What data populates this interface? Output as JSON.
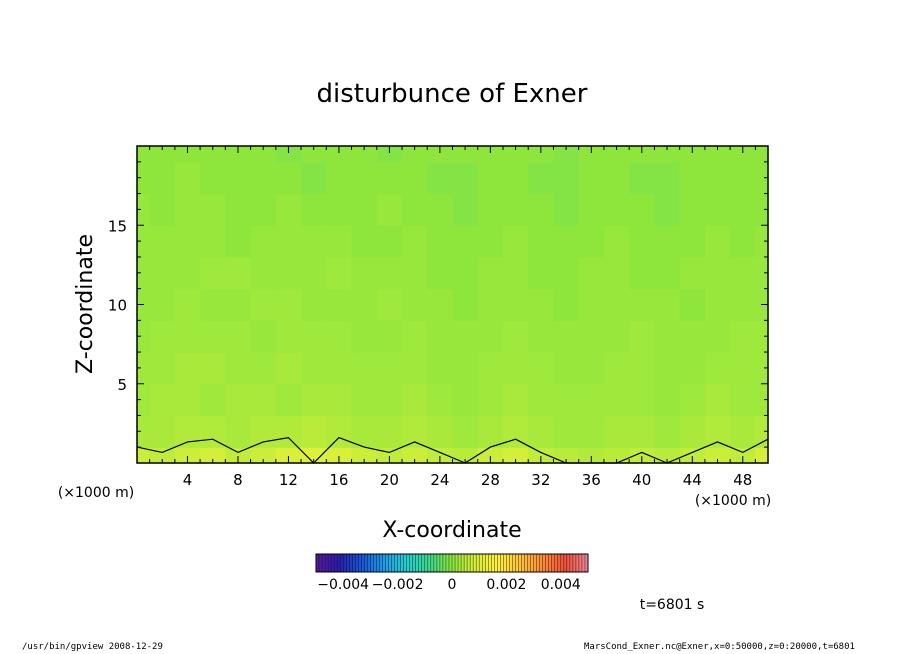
{
  "chart_data": {
    "type": "heatmap",
    "title": "disturbunce of Exner",
    "xlabel": "X-coordinate",
    "ylabel": "Z-coordinate",
    "x_unit": "(×1000 m)",
    "y_unit": "(×1000 m)",
    "xlim": [
      0,
      50
    ],
    "ylim": [
      0,
      20
    ],
    "x_ticks": [
      4,
      8,
      12,
      16,
      20,
      24,
      28,
      32,
      36,
      40,
      44,
      48
    ],
    "y_ticks": [
      5,
      10,
      15
    ],
    "colorbar": {
      "min": -0.005,
      "max": 0.005,
      "tick_values": [
        -0.004,
        -0.002,
        0,
        0.002,
        0.004
      ],
      "tick_labels": [
        "−0.004",
        "−0.002",
        "0",
        "0.002",
        "0.004"
      ],
      "colors": [
        "#5a1a9a",
        "#2a1fb0",
        "#1a55d8",
        "#1e9be8",
        "#22cfcf",
        "#3fd98a",
        "#8ee63c",
        "#d6ef3a",
        "#fff23a",
        "#ffc43a",
        "#ff8a3a",
        "#f0503a",
        "#f08a9a"
      ]
    },
    "field": {
      "description_values": "approximate Exner disturbance sampled on a 26 x 11 grid (x every 2 km from 0 to 50, z every 2 km from 0 to 20)",
      "rows_z": [
        0,
        2,
        4,
        6,
        8,
        10,
        12,
        14,
        16,
        18,
        20
      ],
      "values": [
        [
          0.0007,
          0.0006,
          0.0007,
          0.0008,
          0.0006,
          0.0007,
          0.0009,
          0.001,
          0.0009,
          0.0007,
          0.0006,
          0.0007,
          0.0006,
          0.0005,
          0.0007,
          0.0008,
          0.0006,
          0.0005,
          0.0004,
          0.0005,
          0.0006,
          0.0005,
          0.0006,
          0.0007,
          0.0006,
          0.0008
        ],
        [
          0.0003,
          0.0003,
          0.0004,
          0.0004,
          0.0003,
          0.0004,
          0.0004,
          0.0005,
          0.0004,
          0.0003,
          0.0003,
          0.0004,
          0.0003,
          0.0002,
          0.0003,
          0.0004,
          0.0003,
          0.0002,
          0.0002,
          0.0003,
          0.0003,
          0.0002,
          0.0003,
          0.0004,
          0.0003,
          0.0004
        ],
        [
          0.0002,
          0.0003,
          0.0003,
          0.0002,
          0.0003,
          0.0003,
          0.0002,
          0.0003,
          0.0003,
          0.0002,
          0.0002,
          0.0003,
          0.0002,
          0.0001,
          0.0002,
          0.0003,
          0.0002,
          0.0002,
          0.0002,
          0.0002,
          0.0002,
          0.0001,
          0.0002,
          0.0003,
          0.0002,
          0.0002
        ],
        [
          0.0002,
          0.0002,
          0.0003,
          0.0003,
          0.0002,
          0.0002,
          0.0003,
          0.0002,
          0.0002,
          0.0002,
          0.0002,
          0.0002,
          0.0001,
          0.0001,
          0.0002,
          0.0002,
          0.0002,
          0.0001,
          0.0001,
          0.0002,
          0.0002,
          0.0001,
          0.0001,
          0.0002,
          0.0002,
          0.0002
        ],
        [
          0.0001,
          0.0002,
          0.0002,
          0.0002,
          0.0002,
          0.0001,
          0.0002,
          0.0002,
          0.0002,
          0.0001,
          0.0001,
          0.0002,
          0.0001,
          0.0001,
          0.0001,
          0.0002,
          0.0001,
          0.0001,
          0.0001,
          0.0001,
          0.0002,
          0.0001,
          0.0001,
          0.0001,
          0.0002,
          0.0002
        ],
        [
          0.0001,
          0.0001,
          0.0002,
          0.0001,
          0.0001,
          0.0002,
          0.0002,
          0.0001,
          0.0001,
          0.0001,
          0.0002,
          0.0001,
          0.0001,
          0.0,
          0.0001,
          0.0001,
          0.0001,
          0.0,
          0.0001,
          0.0001,
          0.0001,
          0.0001,
          0.0,
          0.0001,
          0.0001,
          0.0001
        ],
        [
          0.0001,
          0.0001,
          0.0001,
          0.0002,
          0.0002,
          0.0001,
          0.0001,
          0.0001,
          0.0002,
          0.0001,
          0.0001,
          0.0001,
          0.0,
          0.0,
          0.0001,
          0.0001,
          0.0,
          0.0,
          0.0001,
          0.0001,
          0.0,
          0.0,
          0.0001,
          0.0001,
          0.0001,
          0.0001
        ],
        [
          0.0001,
          0.0001,
          0.0001,
          0.0001,
          0.0,
          0.0001,
          0.0001,
          0.0001,
          0.0001,
          0.0,
          0.0,
          0.0001,
          0.0,
          0.0,
          0.0,
          0.0001,
          0.0,
          0.0,
          0.0,
          0.0001,
          0.0,
          0.0,
          0.0,
          0.0001,
          0.0,
          0.0001
        ],
        [
          0.0001,
          0.0,
          0.0001,
          0.0001,
          0.0,
          0.0,
          0.0001,
          0.0,
          0.0,
          0.0,
          0.0001,
          0.0,
          0.0,
          -0.0001,
          0.0,
          0.0,
          0.0,
          -0.0001,
          0.0,
          0.0,
          0.0,
          -0.0001,
          0.0,
          0.0,
          0.0,
          0.0
        ],
        [
          0.0,
          0.0,
          0.0001,
          0.0,
          0.0,
          0.0,
          0.0,
          -0.0001,
          0.0,
          0.0,
          0.0,
          0.0,
          -0.0001,
          -0.0001,
          0.0,
          0.0,
          -0.0001,
          -0.0001,
          0.0,
          0.0,
          -0.0001,
          -0.0001,
          0.0,
          0.0,
          0.0,
          0.0
        ],
        [
          0.0,
          0.0,
          0.0,
          0.0,
          0.0,
          0.0,
          -0.0001,
          0.0,
          0.0,
          0.0,
          -0.0001,
          0.0,
          0.0,
          0.0,
          0.0,
          0.0,
          0.0,
          -0.0001,
          0.0,
          0.0,
          0.0,
          0.0,
          0.0,
          0.0,
          0.0,
          0.0
        ]
      ]
    },
    "contour_level": 0.0005,
    "time_label": "t=6801 s",
    "grid": false
  },
  "footer": {
    "left": "/usr/bin/gpview   2008-12-29",
    "right": "MarsCond_Exner.nc@Exner,x=0:50000,z=0:20000,t=6801"
  }
}
